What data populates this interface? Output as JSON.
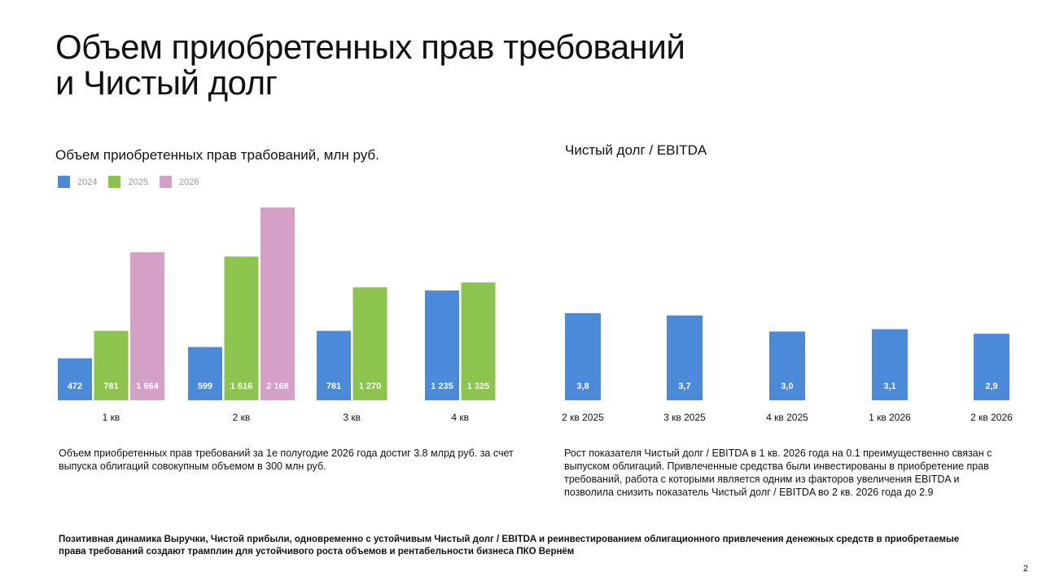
{
  "title_lines": [
    "Объем приобретенных прав требований",
    "и Чистый долг"
  ],
  "colors": {
    "y2024": "#4a8ad9",
    "y2025": "#8cc44e",
    "y2026": "#d4a0c8"
  },
  "chart_data": [
    {
      "type": "bar",
      "title": "Объем приобретенных прав трабований, млн руб.",
      "categories": [
        "1 кв",
        "2 кв",
        "3 кв",
        "4 кв"
      ],
      "series": [
        {
          "name": "2024",
          "color": "#4a8ad9",
          "values": [
            472,
            599,
            781,
            1235
          ],
          "labels": [
            "472",
            "599",
            "781",
            "1 235"
          ]
        },
        {
          "name": "2025",
          "color": "#8cc44e",
          "values": [
            781,
            1616,
            1270,
            1325
          ],
          "labels": [
            "781",
            "1 616",
            "1 270",
            "1 325"
          ]
        },
        {
          "name": "2026",
          "color": "#d4a0c8",
          "values": [
            1664,
            2168,
            null,
            null
          ],
          "labels": [
            "1 664",
            "2 168",
            "",
            ""
          ]
        }
      ],
      "legend": "top-left",
      "grid": false,
      "ylim": [
        0,
        2168
      ]
    },
    {
      "type": "bar",
      "title": "Чистый долг / EBITDA",
      "categories": [
        "2 кв 2025",
        "3 кв 2025",
        "4 кв 2025",
        "1 кв 2026",
        "2 кв 2026"
      ],
      "series": [
        {
          "color": "#4a8ad9",
          "values": [
            3.8,
            3.7,
            3.0,
            3.1,
            2.9
          ],
          "labels": [
            "3,8",
            "3,7",
            "3,0",
            "3,1",
            "2,9"
          ]
        }
      ],
      "grid": false,
      "ylim": [
        0,
        4
      ]
    }
  ],
  "left_description": "Объем приобретенных прав требований за 1е полугодие 2026 года достиг 3.8 млрд руб. за счет выпуска облигаций совокупным объемом в 300 млн руб.",
  "right_description": "Рост показателя Чистый долг / EBITDA в 1 кв. 2026 года на 0.1 преимущественно связан с выпуском облигаций. Привлеченные средства были инвестированы в приобретение прав требований, работа с которыми является одним из факторов увеличения EBITDA и позволила снизить показатель Чистый долг / EBITDA во 2 кв. 2026 года до 2.9",
  "footer_note": "Позитивная динамика Выручки, Чистой прибыли, одновременно с устойчивым Чистый долг / EBITDA и реинвестированием облигационного привлечения денежных средств в приобретаемые права требований создают трамплин для устойчивого роста объемов и рентабельности бизнеса ПКО Вернём",
  "page_number": "2"
}
